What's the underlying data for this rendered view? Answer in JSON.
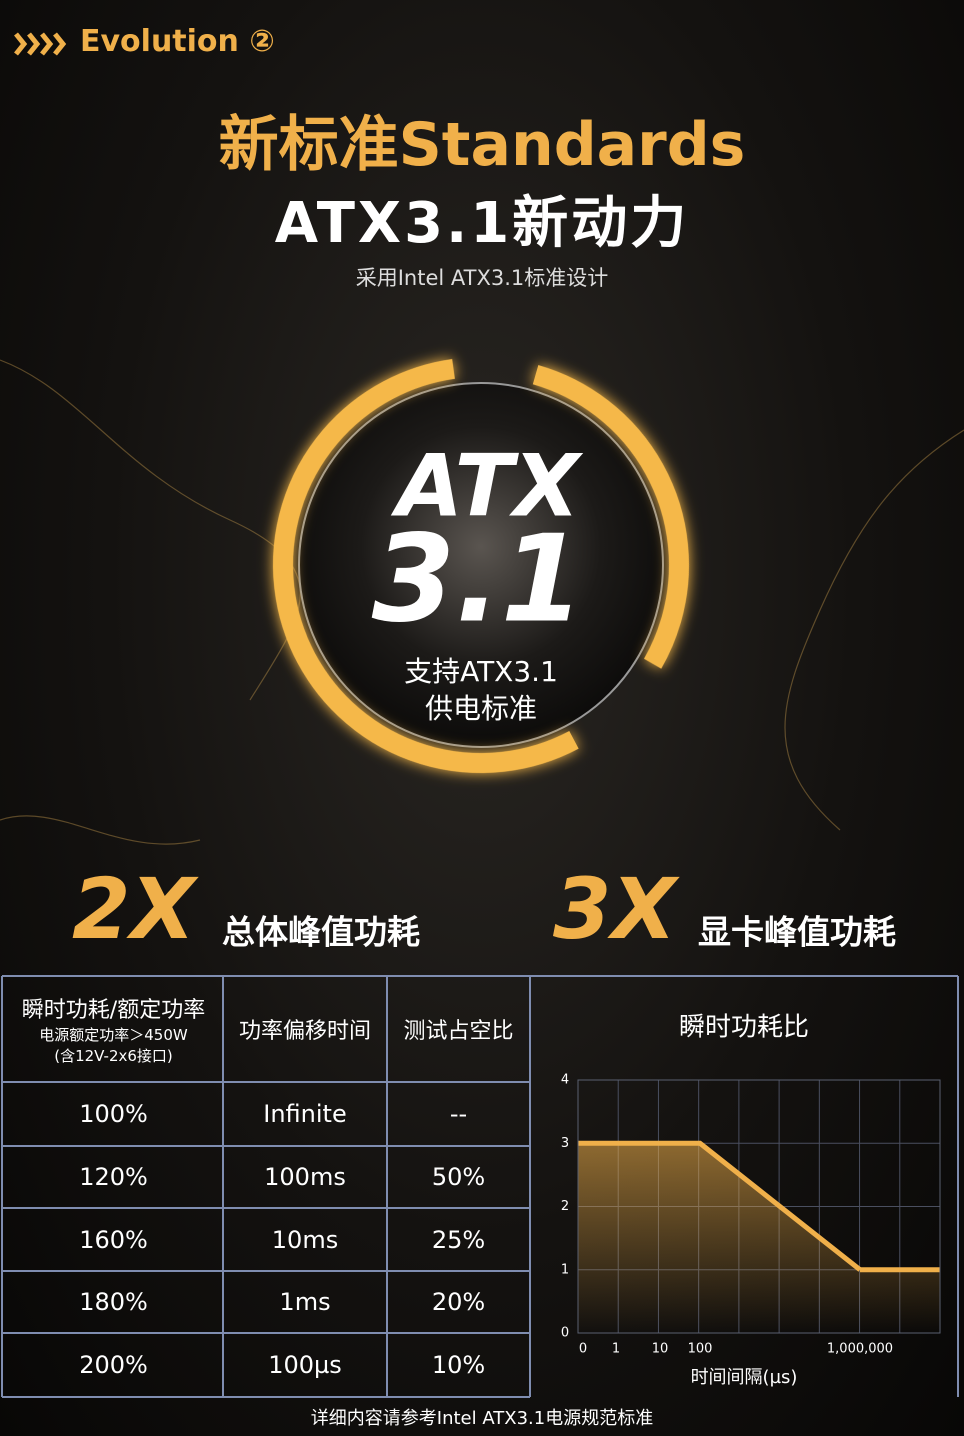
{
  "header": {
    "tag": "Evolution ②",
    "title": "新标准Standards",
    "headline": "ATX3.1新动力",
    "subtitle": "采用Intel ATX3.1标准设计"
  },
  "badge": {
    "line1": "ATX",
    "line2": "3.1",
    "caption1": "支持ATX3.1",
    "caption2": "供电标准"
  },
  "stats": [
    {
      "value": "2X",
      "label": "总体峰值功耗"
    },
    {
      "value": "3X",
      "label": "显卡峰值功耗"
    }
  ],
  "table": {
    "headers": [
      "瞬时功耗/额定功率",
      "功率偏移时间",
      "测试占空比"
    ],
    "header_note": [
      "电源额定功率＞450W",
      "(含12V-2x6接口)"
    ],
    "rows": [
      [
        "100%",
        "Infinite",
        "--"
      ],
      [
        "120%",
        "100ms",
        "50%"
      ],
      [
        "160%",
        "10ms",
        "25%"
      ],
      [
        "180%",
        "1ms",
        "20%"
      ],
      [
        "200%",
        "100µs",
        "10%"
      ]
    ]
  },
  "chart_data": {
    "type": "line",
    "title": "瞬时功耗比",
    "x_label": "时间间隔(µs)",
    "categories": [
      "0",
      "1",
      "10",
      "100",
      "1,000,000"
    ],
    "series": [
      {
        "name": "瞬时功耗比",
        "color": "#f0b04a",
        "values": [
          3,
          3,
          3,
          3,
          1
        ]
      }
    ],
    "ylim": [
      0,
      4
    ],
    "yticks": [
      0,
      1,
      2,
      3,
      4
    ],
    "grid": true
  },
  "footer": "详细内容请参考Intel ATX3.1电源规范标准"
}
